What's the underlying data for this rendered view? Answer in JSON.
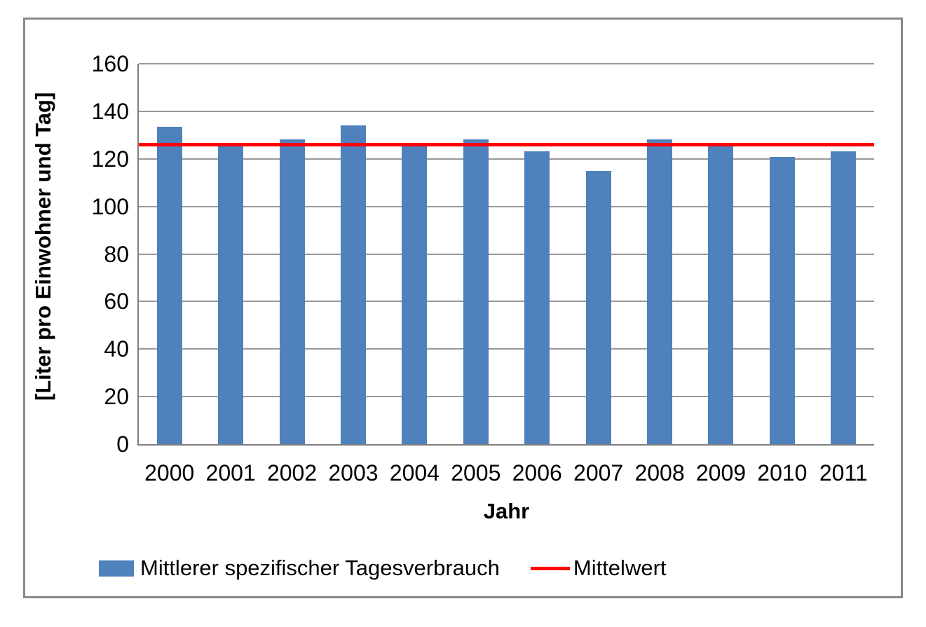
{
  "chart_data": {
    "type": "bar",
    "title": "",
    "categories": [
      "2000",
      "2001",
      "2002",
      "2003",
      "2004",
      "2005",
      "2006",
      "2007",
      "2008",
      "2009",
      "2010",
      "2011"
    ],
    "series": [
      {
        "name": "Mittlerer spezifischer Tagesverbrauch",
        "type": "bar",
        "color": "#4F81BD",
        "values": [
          133.5,
          125.2,
          128.2,
          134.2,
          125.2,
          128.3,
          123.2,
          115.0,
          128.1,
          125.3,
          120.7,
          123.2
        ]
      },
      {
        "name": "Mittelwert",
        "type": "line",
        "color": "#FF0000",
        "constant": 126
      }
    ],
    "xlabel": "Jahr",
    "ylabel": "[Liter pro Einwohner und Tag]",
    "ylim": [
      0,
      160
    ],
    "yticks": [
      "0",
      "20",
      "40",
      "60",
      "80",
      "100",
      "120",
      "140",
      "160"
    ],
    "grid": true,
    "legend_position": "bottom",
    "colors": {
      "bar_fill": "#4F81BD",
      "mean_line": "#FF0000",
      "gridline": "#999999",
      "axis_line": "#808080",
      "figure_border": "#898989",
      "text": "#000000",
      "background": "#FFFFFF"
    }
  }
}
